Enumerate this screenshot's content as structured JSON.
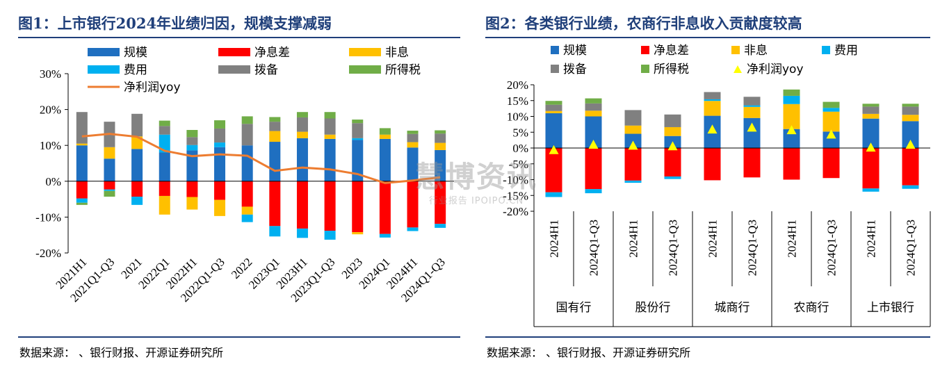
{
  "fig1": {
    "title": "图1：上市银行2024年业绩归因，规模支撑减弱",
    "source": "数据来源：      、银行财报、开源证券研究所",
    "chart_data": {
      "type": "bar",
      "stacked": true,
      "ylim": [
        -20,
        30
      ],
      "yticks": [
        "30%",
        "20%",
        "10%",
        "0%",
        "-10%",
        "-20%"
      ],
      "categories": [
        "2021H1",
        "2021Q1-Q3",
        "2021",
        "2022Q1",
        "2022H1",
        "2022Q1-Q3",
        "2022",
        "2023Q1",
        "2023H1",
        "2023Q1-Q3",
        "2023",
        "2024Q1",
        "2024H1",
        "2024Q1-Q3"
      ],
      "series": [
        {
          "name": "规模",
          "color": "#1f6fc0",
          "values": [
            10,
            6.3,
            9,
            8,
            8.6,
            9.5,
            10,
            11,
            12,
            11.8,
            11.5,
            11.8,
            9.4,
            8.7
          ]
        },
        {
          "name": "净息差",
          "color": "#ff0000",
          "values": [
            -4.8,
            -2.3,
            -4.3,
            -4.1,
            -4.4,
            -5.2,
            -7.1,
            -12.5,
            -13.2,
            -13.8,
            -14.2,
            -14.7,
            -12.9,
            -11.9
          ]
        },
        {
          "name": "非息",
          "color": "#ffc000",
          "values": [
            0.5,
            3.2,
            3.5,
            -5.2,
            -3.5,
            -4.5,
            -2.2,
            3,
            1.8,
            1.2,
            -0.6,
            1.2,
            1.5,
            2
          ]
        },
        {
          "name": "费用",
          "color": "#00b0f0",
          "values": [
            -1.2,
            -0.4,
            -2.3,
            5,
            1.5,
            1.3,
            -2.1,
            -2.9,
            -2.6,
            -2.5,
            0.5,
            -1,
            -1,
            -1.1
          ]
        },
        {
          "name": "拨备",
          "color": "#808080",
          "values": [
            8.8,
            7.1,
            6.3,
            2.4,
            2.2,
            3.9,
            6,
            2.6,
            4,
            4.5,
            4.2,
            0,
            2.3,
            2.6
          ]
        },
        {
          "name": "所得税",
          "color": "#70ad47",
          "values": [
            -0.6,
            -1.6,
            0,
            1.5,
            2,
            2.3,
            2.1,
            1.3,
            1.5,
            1.8,
            1,
            1.8,
            0.9,
            0.9
          ]
        }
      ],
      "line": {
        "name": "净利润yoy",
        "color": "#ed7d31",
        "values": [
          12.5,
          13.2,
          12.4,
          8.5,
          7,
          7.5,
          7.1,
          2.9,
          3.8,
          3.3,
          2,
          -0.5,
          0.2,
          1.1
        ]
      }
    }
  },
  "fig2": {
    "title": "图2：各类银行业绩，农商行非息收入贡献度较高",
    "source": "数据来源：      、银行财报、开源证券研究所",
    "chart_data": {
      "type": "bar",
      "stacked": true,
      "ylim": [
        -20,
        20
      ],
      "yticks": [
        "20%",
        "15%",
        "10%",
        "5%",
        "0%",
        "-5%",
        "-10%",
        "-15%",
        "-20%"
      ],
      "categories": [
        "2024H1",
        "2024Q1-Q3",
        "2024H1",
        "2024Q1-Q3",
        "2024H1",
        "2024Q1-Q3",
        "2024H1",
        "2024Q1-Q3",
        "2024H1",
        "2024Q1-Q3"
      ],
      "groups": [
        "国有行",
        "股份行",
        "城商行",
        "农商行",
        "上市银行"
      ],
      "series": [
        {
          "name": "规模",
          "color": "#1f6fc0",
          "values": [
            11,
            10,
            4.5,
            3.8,
            10.2,
            9.5,
            6,
            5.2,
            9.3,
            8.5
          ]
        },
        {
          "name": "净息差",
          "color": "#ff0000",
          "values": [
            -14,
            -13,
            -10.3,
            -9,
            -10.2,
            -9.3,
            -10,
            -9.5,
            -12.8,
            -11.8
          ]
        },
        {
          "name": "非息",
          "color": "#ffc000",
          "values": [
            0.7,
            1.8,
            2.6,
            2.8,
            4.7,
            3.5,
            7.9,
            6.3,
            1.5,
            2
          ]
        },
        {
          "name": "费用",
          "color": "#00b0f0",
          "values": [
            -1.5,
            -1.3,
            -0.7,
            -0.8,
            0.5,
            0.5,
            2.6,
            1.2,
            -1,
            -1.1
          ]
        },
        {
          "name": "拨备",
          "color": "#808080",
          "values": [
            2,
            2.3,
            4.9,
            4,
            2.3,
            2.7,
            0,
            0,
            2.3,
            2.6
          ]
        },
        {
          "name": "所得税",
          "color": "#70ad47",
          "values": [
            1.2,
            1.6,
            0,
            0,
            0,
            0,
            2,
            1.9,
            0.9,
            0.9
          ]
        }
      ],
      "points": {
        "name": "净利润yoy",
        "color": "#ffff00",
        "values": [
          -0.6,
          1.1,
          0.8,
          0.6,
          5.9,
          6.5,
          5.7,
          4.3,
          0.2,
          1.1
        ]
      }
    }
  },
  "watermark": {
    "text": "慧博资讯",
    "sub": "行业报告 IPOIPO.CN"
  }
}
